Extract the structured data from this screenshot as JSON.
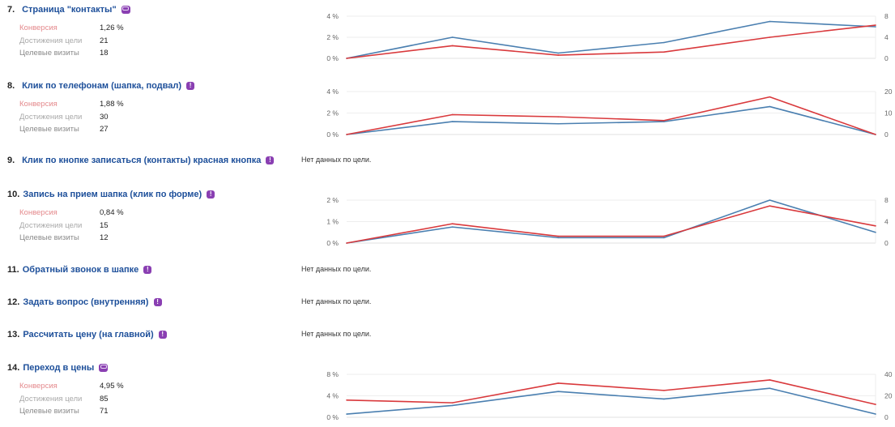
{
  "colors": {
    "title": "#1d4f9a",
    "badge": "#8a3fb2",
    "conversion_line": "#d9393c",
    "visits_line": "#4a7fb0",
    "grid": "#eeeeee"
  },
  "goals": [
    {
      "number": "7.",
      "title": "Страница \"контакты\"",
      "icon": "url-icon",
      "stats": [
        {
          "label": "Конверсия",
          "value": "1,26 %"
        },
        {
          "label": "Достижения цели",
          "value": "21"
        },
        {
          "label": "Целевые визиты",
          "value": "18"
        }
      ],
      "chart": 0
    },
    {
      "number": "8.",
      "title": "Клик по телефонам (шапка, подвал)",
      "icon": "exclamation-icon",
      "stats": [
        {
          "label": "Конверсия",
          "value": "1,88 %"
        },
        {
          "label": "Достижения цели",
          "value": "30"
        },
        {
          "label": "Целевые визиты",
          "value": "27"
        }
      ],
      "chart": 1
    },
    {
      "number": "9.",
      "title": "Клик по кнопке записаться (контакты) красная кнопка",
      "icon": "exclamation-icon",
      "no_data": "Нет данных по цели."
    },
    {
      "number": "10.",
      "title": "Запись на прием шапка (клик по форме)",
      "icon": "exclamation-icon",
      "stats": [
        {
          "label": "Конверсия",
          "value": "0,84 %"
        },
        {
          "label": "Достижения цели",
          "value": "15"
        },
        {
          "label": "Целевые визиты",
          "value": "12"
        }
      ],
      "chart": 2
    },
    {
      "number": "11.",
      "title": "Обратный звонок в шапке",
      "icon": "exclamation-icon",
      "no_data": "Нет данных по цели."
    },
    {
      "number": "12.",
      "title": "Задать вопрос (внутренняя)",
      "icon": "exclamation-icon",
      "no_data": "Нет данных по цели."
    },
    {
      "number": "13.",
      "title": "Рассчитать цену (на главной)",
      "icon": "exclamation-icon",
      "no_data": "Нет данных по цели."
    },
    {
      "number": "14.",
      "title": "Переход в цены",
      "icon": "url-icon",
      "stats": [
        {
          "label": "Конверсия",
          "value": "4,95 %"
        },
        {
          "label": "Достижения цели",
          "value": "85"
        },
        {
          "label": "Целевые визиты",
          "value": "71"
        }
      ],
      "chart": 3
    }
  ],
  "chart_data": [
    {
      "type": "line",
      "title": "Страница \"контакты\"",
      "x": [
        1,
        2,
        3,
        4,
        5,
        6
      ],
      "left_axis": {
        "ticks": [
          "0 %",
          "2 %",
          "4 %"
        ],
        "range": [
          0,
          4
        ]
      },
      "right_axis": {
        "ticks": [
          "0",
          "4",
          "8"
        ],
        "range": [
          0,
          8
        ]
      },
      "series": [
        {
          "name": "Конверсия",
          "axis": "left",
          "values": [
            0,
            1.2,
            0.3,
            0.6,
            2.0,
            3.15
          ]
        },
        {
          "name": "Целевые визиты",
          "axis": "right",
          "values": [
            0,
            4,
            1,
            3,
            7,
            6
          ]
        }
      ],
      "grid": true
    },
    {
      "type": "line",
      "title": "Клик по телефонам (шапка, подвал)",
      "x": [
        1,
        2,
        3,
        4,
        5,
        6
      ],
      "left_axis": {
        "ticks": [
          "0 %",
          "2 %",
          "4 %"
        ],
        "range": [
          0,
          4
        ]
      },
      "right_axis": {
        "ticks": [
          "0",
          "10",
          "20"
        ],
        "range": [
          0,
          20
        ]
      },
      "series": [
        {
          "name": "Конверсия",
          "axis": "left",
          "values": [
            0,
            1.85,
            1.65,
            1.3,
            3.5,
            0
          ]
        },
        {
          "name": "Целевые визиты",
          "axis": "right",
          "values": [
            0,
            6,
            5,
            6,
            13,
            0
          ]
        }
      ],
      "grid": true
    },
    {
      "type": "line",
      "title": "Запись на прием шапка (клик по форме)",
      "x": [
        1,
        2,
        3,
        4,
        5,
        6
      ],
      "left_axis": {
        "ticks": [
          "0 %",
          "1 %",
          "2 %"
        ],
        "range": [
          0,
          2
        ]
      },
      "right_axis": {
        "ticks": [
          "0",
          "4",
          "8"
        ],
        "range": [
          0,
          8
        ]
      },
      "series": [
        {
          "name": "Конверсия",
          "axis": "left",
          "values": [
            0,
            0.9,
            0.32,
            0.32,
            1.73,
            0.8
          ]
        },
        {
          "name": "Целевые визиты",
          "axis": "right",
          "values": [
            0,
            3,
            1,
            1,
            8,
            2
          ]
        }
      ],
      "grid": true
    },
    {
      "type": "line",
      "title": "Переход в цены",
      "x": [
        1,
        2,
        3,
        4,
        5,
        6
      ],
      "left_axis": {
        "ticks": [
          "0 %",
          "4 %",
          "8 %"
        ],
        "range": [
          0,
          8
        ]
      },
      "right_axis": {
        "ticks": [
          "0",
          "20",
          "40"
        ],
        "range": [
          0,
          40
        ]
      },
      "series": [
        {
          "name": "Конверсия",
          "axis": "left",
          "values": [
            3.2,
            2.7,
            6.35,
            5.0,
            6.95,
            2.4
          ]
        },
        {
          "name": "Целевые визиты",
          "axis": "right",
          "values": [
            3,
            11,
            24,
            17,
            27,
            3
          ]
        }
      ],
      "grid": true
    }
  ]
}
